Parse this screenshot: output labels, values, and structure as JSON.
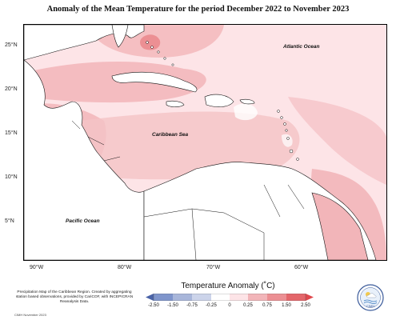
{
  "title": "Anomaly of the Mean Temperature for the period December 2022 to November 2023",
  "map": {
    "lat_labels": [
      "25°N",
      "20°N",
      "15°N",
      "10°N",
      "5°N"
    ],
    "lon_labels": [
      "90°W",
      "80°W",
      "70°W",
      "60°W"
    ],
    "ocean_labels": {
      "atlantic": "Atlantic Ocean",
      "caribbean": "Caribbean Sea",
      "pacific": "Pacific Ocean"
    }
  },
  "legend": {
    "title": "Temperature Anomaly (˚C)",
    "ticks": [
      "-2.50",
      "-1.50",
      "-0.75",
      "-0.25",
      "0",
      "0.25",
      "0.75",
      "1.50",
      "2.50"
    ],
    "colors": [
      "#4a63a8",
      "#7f95cc",
      "#a8b6da",
      "#ccd4ea",
      "#ffffff",
      "#fde4e7",
      "#f2b5b9",
      "#ec8f93",
      "#e4666a"
    ]
  },
  "credit": {
    "text": "Precipitation Map of the Caribbean Region. Created by aggregating station based observations, provided by CariCOF, with INCEPICRAN Reanalysis Data.",
    "date": "CIMH November 2023"
  },
  "logo": {
    "label": "CIMH",
    "icon": "cimh-logo-icon"
  }
}
